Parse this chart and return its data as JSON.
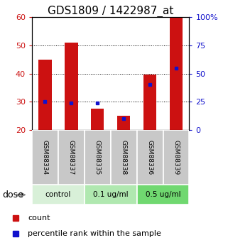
{
  "title": "GDS1809 / 1422987_at",
  "samples": [
    "GSM88334",
    "GSM88337",
    "GSM88335",
    "GSM88338",
    "GSM88336",
    "GSM88339"
  ],
  "count_values": [
    45,
    51,
    27.5,
    25,
    39.5,
    60
  ],
  "percentile_values": [
    25,
    24,
    24,
    10,
    40,
    55
  ],
  "y_min": 20,
  "y_max": 60,
  "y_left_ticks": [
    20,
    30,
    40,
    50,
    60
  ],
  "y_right_ticks": [
    0,
    25,
    50,
    75,
    100
  ],
  "bar_color": "#cc1111",
  "dot_color": "#1111cc",
  "bar_width": 0.5,
  "group_spans": [
    [
      0,
      1,
      "control",
      "#d8f0d8"
    ],
    [
      2,
      3,
      "0.1 ug/ml",
      "#b0e8b0"
    ],
    [
      4,
      5,
      "0.5 ug/ml",
      "#70d870"
    ]
  ],
  "sample_bg": "#c8c8c8",
  "dose_label": "dose",
  "legend_count": "count",
  "legend_percentile": "percentile rank within the sample",
  "title_fontsize": 11,
  "left_tick_color": "#cc1111",
  "right_tick_color": "#1111cc"
}
